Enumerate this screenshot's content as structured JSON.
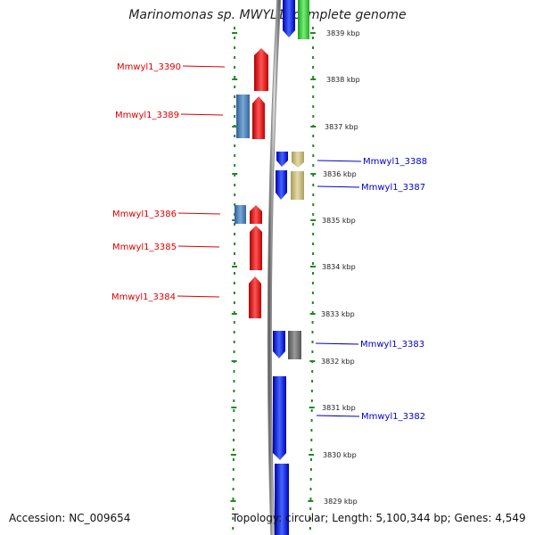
{
  "title": "Marinomonas sp. MWYL1, complete genome",
  "accession": "Accession: NC_009654",
  "topology": "Topology: circular; Length: 5,100,344 bp; Genes: 4,549",
  "colors": {
    "red_gene": "#ee1111",
    "blue_gene": "#1111ee",
    "steel_blue": "#4a7fb8",
    "khaki": "#c8bd80",
    "gray": "#707070",
    "green": "#33cc33",
    "tick_green": "#228822",
    "label_red": "#dd0000",
    "label_blue": "#0000cc"
  },
  "ruler": [
    {
      "label": "3839 kbp"
    },
    {
      "label": "3838 kbp"
    },
    {
      "label": "3837 kbp"
    },
    {
      "label": "3836 kbp"
    },
    {
      "label": "3835 kbp"
    },
    {
      "label": "3834 kbp"
    },
    {
      "label": "3833 kbp"
    },
    {
      "label": "3832 kbp"
    },
    {
      "label": "3831 kbp"
    },
    {
      "label": "3830 kbp"
    },
    {
      "label": "3829 kbp"
    }
  ],
  "labels": {
    "left": [
      "Mmwyl1_3390",
      "Mmwyl1_3389",
      "Mmwyl1_3386",
      "Mmwyl1_3385",
      "Mmwyl1_3384"
    ],
    "right": [
      "Mmwyl1_3388",
      "Mmwyl1_3387",
      "Mmwyl1_3383",
      "Mmwyl1_3382"
    ]
  }
}
